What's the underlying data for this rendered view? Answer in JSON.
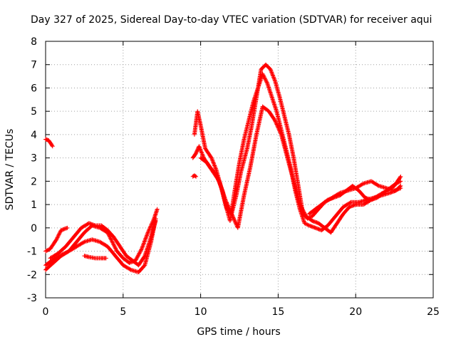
{
  "chart_data": {
    "type": "scatter",
    "title": "Day 327 of 2025, Sidereal Day-to-day VTEC variation (SDTVAR) for receiver aqui",
    "xlabel": "GPS time / hours",
    "ylabel": "SDTVAR / TECUs",
    "xlim": [
      0,
      25
    ],
    "ylim": [
      -3,
      8
    ],
    "xticks": [
      0,
      5,
      10,
      15,
      20,
      25
    ],
    "yticks": [
      -3,
      -2,
      -1,
      0,
      1,
      2,
      3,
      4,
      5,
      6,
      7,
      8
    ],
    "grid": true,
    "marker": "+",
    "color": "#ff0000",
    "series": [
      {
        "name": "trace-a",
        "x": [
          0.0,
          0.2,
          0.45
        ],
        "y": [
          3.8,
          3.75,
          3.5
        ]
      },
      {
        "name": "trace-b",
        "x": [
          0.0,
          0.3,
          0.7,
          1.0,
          1.4
        ],
        "y": [
          -1.0,
          -0.9,
          -0.5,
          -0.1,
          0.0
        ]
      },
      {
        "name": "trace-c",
        "x": [
          0.0,
          0.4,
          0.9,
          1.5,
          2.0,
          2.5,
          3.0,
          3.5,
          4.0,
          4.3,
          4.6,
          5.0,
          5.4,
          5.8,
          6.2,
          6.6,
          7.0,
          7.2
        ],
        "y": [
          -1.6,
          -1.4,
          -1.2,
          -1.0,
          -0.6,
          -0.2,
          0.1,
          0.0,
          -0.2,
          -0.6,
          -1.0,
          -1.3,
          -1.5,
          -1.4,
          -0.9,
          -0.2,
          0.4,
          0.8
        ]
      },
      {
        "name": "trace-d",
        "x": [
          0.0,
          0.5,
          1.0,
          1.5,
          2.0,
          2.5,
          3.0,
          3.5,
          4.0,
          4.5,
          5.0,
          5.5,
          6.0,
          6.4,
          6.8,
          7.1
        ],
        "y": [
          -1.8,
          -1.5,
          -1.2,
          -1.0,
          -0.8,
          -0.6,
          -0.5,
          -0.6,
          -0.8,
          -1.2,
          -1.6,
          -1.8,
          -1.9,
          -1.6,
          -0.6,
          0.4
        ]
      },
      {
        "name": "trace-e",
        "x": [
          0.3,
          0.8,
          1.3,
          1.8,
          2.3,
          2.8,
          3.2,
          3.6,
          4.0,
          4.4,
          4.8,
          5.2,
          5.6,
          6.0,
          6.4,
          6.8,
          7.1
        ],
        "y": [
          -1.3,
          -1.1,
          -0.8,
          -0.4,
          0.0,
          0.2,
          0.1,
          0.1,
          -0.1,
          -0.4,
          -0.8,
          -1.2,
          -1.4,
          -1.6,
          -1.2,
          -0.4,
          0.3
        ]
      },
      {
        "name": "trace-f",
        "x": [
          2.5,
          2.8,
          3.2,
          3.6,
          3.9
        ],
        "y": [
          -1.2,
          -1.25,
          -1.3,
          -1.3,
          -1.3
        ]
      },
      {
        "name": "trace-g",
        "x": [
          9.5,
          9.6,
          9.7
        ],
        "y": [
          2.2,
          2.25,
          2.2
        ]
      },
      {
        "name": "trace-h",
        "x": [
          9.5,
          9.7,
          9.9,
          10.2,
          10.6,
          11.0,
          11.4,
          11.7,
          12.0,
          12.3,
          12.6,
          13.0,
          13.3,
          13.6,
          13.9,
          14.2,
          14.5,
          14.8,
          15.1,
          15.4,
          15.7,
          16.0,
          16.3,
          16.6,
          16.9,
          17.2,
          17.6,
          18.0,
          18.5,
          19.0,
          19.5,
          20.0,
          20.5,
          21.0,
          21.5,
          22.0,
          22.5,
          22.9
        ],
        "y": [
          3.0,
          3.2,
          3.5,
          3.0,
          2.6,
          2.3,
          1.6,
          0.8,
          0.6,
          1.4,
          2.4,
          3.4,
          4.4,
          5.6,
          6.8,
          7.0,
          6.8,
          6.3,
          5.6,
          4.8,
          4.0,
          3.0,
          1.8,
          0.6,
          0.4,
          0.5,
          0.8,
          1.1,
          1.3,
          1.5,
          1.6,
          1.7,
          1.9,
          2.0,
          1.8,
          1.7,
          1.6,
          1.7
        ]
      },
      {
        "name": "trace-i",
        "x": [
          9.6,
          9.8,
          10.0,
          10.3,
          10.7,
          11.0,
          11.3,
          11.6,
          11.9,
          12.2,
          12.5,
          12.8,
          13.1,
          13.4,
          13.7,
          14.0,
          14.3,
          14.6,
          14.9,
          15.2,
          15.5,
          15.8,
          16.1,
          16.4,
          16.7,
          17.0,
          17.4,
          17.8,
          18.2,
          18.7,
          19.2,
          19.7,
          20.2,
          20.7,
          21.2,
          21.7,
          22.2,
          22.6,
          22.9
        ],
        "y": [
          4.0,
          5.0,
          4.4,
          3.4,
          3.0,
          2.5,
          1.8,
          1.0,
          0.3,
          1.6,
          2.8,
          3.8,
          4.6,
          5.4,
          6.0,
          6.6,
          6.2,
          5.6,
          5.0,
          4.2,
          3.4,
          2.6,
          1.6,
          0.8,
          0.2,
          0.1,
          0.0,
          -0.1,
          0.1,
          0.5,
          0.9,
          1.1,
          1.1,
          1.2,
          1.3,
          1.4,
          1.5,
          1.6,
          1.8
        ]
      },
      {
        "name": "trace-j",
        "x": [
          10.0,
          10.4,
          10.8,
          11.2,
          11.6,
          12.0,
          12.4,
          12.8,
          13.2,
          13.6,
          14.0,
          14.4,
          14.8,
          15.2,
          15.6,
          16.0,
          16.4,
          16.8,
          17.2,
          17.6,
          18.0,
          18.4,
          18.8,
          19.2,
          19.6,
          20.0,
          20.5,
          21.0,
          21.5,
          22.0,
          22.5,
          22.9
        ],
        "y": [
          3.0,
          2.8,
          2.4,
          2.0,
          1.2,
          0.6,
          0.0,
          1.4,
          2.6,
          4.0,
          5.2,
          5.0,
          4.6,
          4.0,
          3.0,
          2.0,
          1.0,
          0.5,
          0.3,
          0.2,
          0.0,
          -0.2,
          0.2,
          0.6,
          0.9,
          1.0,
          1.0,
          1.2,
          1.4,
          1.6,
          1.8,
          2.2
        ]
      },
      {
        "name": "trace-k",
        "x": [
          17.0,
          17.4,
          17.8,
          18.2,
          18.6,
          19.0,
          19.4,
          19.8,
          20.2,
          20.6,
          21.0,
          21.4,
          21.8,
          22.2,
          22.6,
          22.9
        ],
        "y": [
          0.6,
          0.8,
          1.0,
          1.2,
          1.3,
          1.4,
          1.6,
          1.8,
          1.6,
          1.3,
          1.2,
          1.3,
          1.5,
          1.7,
          1.9,
          2.0
        ]
      }
    ]
  }
}
